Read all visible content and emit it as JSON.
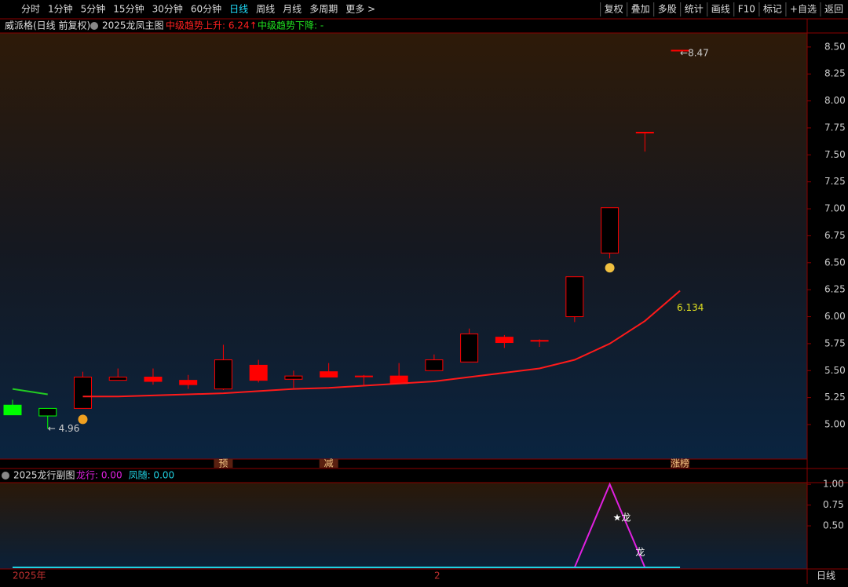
{
  "toolbar": {
    "left": [
      "分时",
      "1分钟",
      "5分钟",
      "15分钟",
      "30分钟",
      "60分钟",
      "日线",
      "周线",
      "月线",
      "多周期",
      "更多 >"
    ],
    "active": "日线",
    "right": [
      "复权",
      "叠加",
      "多股",
      "统计",
      "画线",
      "F10",
      "标记",
      "+自选",
      "返回"
    ]
  },
  "main_header": {
    "stock": "威派格(日线 前复权)",
    "indicator": "2025龙凤主图",
    "up_text": "中级趋势上升: 6.24↑",
    "down_text": "中级趋势下降: -"
  },
  "sub_header": {
    "indicator": "2025龙行副图"
  },
  "markers": [
    {
      "index": 6,
      "label": "预"
    },
    {
      "index": 9,
      "label": "减"
    },
    {
      "index": 19,
      "label": "涨榜"
    }
  ],
  "annotations": {
    "low": "← 4.96",
    "high": "←8.47",
    "ma_end": "6.134",
    "dragon1": "★龙",
    "dragon2": "龙"
  },
  "date_axis": [
    "2025年",
    "2"
  ],
  "period_label": "日线",
  "chart_data": [
    {
      "type": "candlestick",
      "categories": [
        null,
        null,
        null,
        null,
        null,
        null,
        null,
        null,
        null,
        null,
        null,
        null,
        null,
        null,
        null,
        null,
        null,
        null,
        null,
        null
      ],
      "open": [
        5.18,
        5.08,
        5.15,
        5.41,
        5.44,
        5.41,
        5.33,
        5.55,
        5.42,
        5.49,
        5.45,
        5.45,
        5.5,
        5.58,
        5.81,
        5.78,
        6.0,
        6.59,
        7.71,
        8.47
      ],
      "high": [
        5.23,
        5.15,
        5.49,
        5.52,
        5.52,
        5.46,
        5.74,
        5.6,
        5.5,
        5.57,
        5.46,
        5.57,
        5.65,
        5.89,
        5.83,
        5.79,
        6.37,
        7.01,
        7.71,
        8.47
      ],
      "low": [
        5.09,
        4.96,
        5.15,
        5.41,
        5.37,
        5.33,
        5.32,
        5.39,
        5.34,
        5.44,
        5.36,
        5.38,
        5.5,
        5.58,
        5.71,
        5.72,
        5.95,
        6.54,
        7.53,
        8.47
      ],
      "close": [
        5.09,
        5.15,
        5.44,
        5.44,
        5.4,
        5.37,
        5.6,
        5.41,
        5.45,
        5.44,
        5.45,
        5.38,
        5.6,
        5.84,
        5.76,
        5.78,
        6.37,
        7.01,
        7.71,
        8.47
      ],
      "candle_colors": [
        "#00ff00",
        "#00ff00",
        "#ff0000",
        "#ff0000",
        "#ff0000",
        "#ff0000",
        "#ff0000",
        "#ff0000",
        "#ff0000",
        "#ff0000",
        "#ff0000",
        "#ff0000",
        "#ff0000",
        "#ff0000",
        "#ff0000",
        "#ff0000",
        "#ff0000",
        "#ff0000",
        "#ff0000",
        "#ff0000"
      ],
      "series": [
        {
          "color": "#ff1a1a",
          "values": [
            null,
            null,
            5.26,
            5.26,
            5.27,
            5.28,
            5.29,
            5.31,
            5.33,
            5.34,
            5.36,
            5.38,
            5.4,
            5.44,
            5.48,
            5.52,
            5.6,
            5.75,
            5.96,
            6.24
          ]
        },
        {
          "color": "#22cc22",
          "values": [
            5.33,
            5.28,
            null,
            null,
            null,
            null,
            null,
            null,
            null,
            null,
            null,
            null,
            null,
            null,
            null,
            null,
            null,
            null,
            null,
            null
          ]
        }
      ],
      "ylim": [
        4.68,
        8.63
      ],
      "yticks": [
        {
          "value": 5,
          "label": "5.00"
        },
        {
          "value": 5.25,
          "label": "5.25"
        },
        {
          "value": 5.5,
          "label": "5.50"
        },
        {
          "value": 5.75,
          "label": "5.75"
        },
        {
          "value": 6,
          "label": "6.00"
        },
        {
          "value": 6.25,
          "label": "6.25"
        },
        {
          "value": 6.5,
          "label": "6.50"
        },
        {
          "value": 6.75,
          "label": "6.75"
        },
        {
          "value": 7,
          "label": "7.00"
        },
        {
          "value": 7.25,
          "label": "7.25"
        },
        {
          "value": 7.5,
          "label": "7.50"
        },
        {
          "value": 7.75,
          "label": "7.75"
        },
        {
          "value": 8,
          "label": "8.00"
        },
        {
          "value": 8.25,
          "label": "8.25"
        },
        {
          "value": 8.5,
          "label": "8.50"
        }
      ]
    },
    {
      "type": "line",
      "series": [
        {
          "name": "龙行: 0.00",
          "color": "#e020e0",
          "values": [
            null,
            null,
            null,
            null,
            null,
            null,
            null,
            null,
            null,
            null,
            null,
            null,
            null,
            null,
            null,
            null,
            0,
            1,
            0,
            null
          ]
        },
        {
          "name": "凤随: 0.00",
          "color": "#20d0e0",
          "values": [
            0,
            0,
            0,
            0,
            0,
            0,
            0,
            0,
            0,
            0,
            0,
            0,
            0,
            0,
            0,
            0,
            0,
            0,
            0,
            0
          ]
        }
      ],
      "ylim": [
        0,
        1.02
      ],
      "yticks": [
        {
          "value": 0.5,
          "label": "0.50"
        },
        {
          "value": 0.75,
          "label": "0.75"
        },
        {
          "value": 1,
          "label": "1.00"
        }
      ]
    }
  ]
}
